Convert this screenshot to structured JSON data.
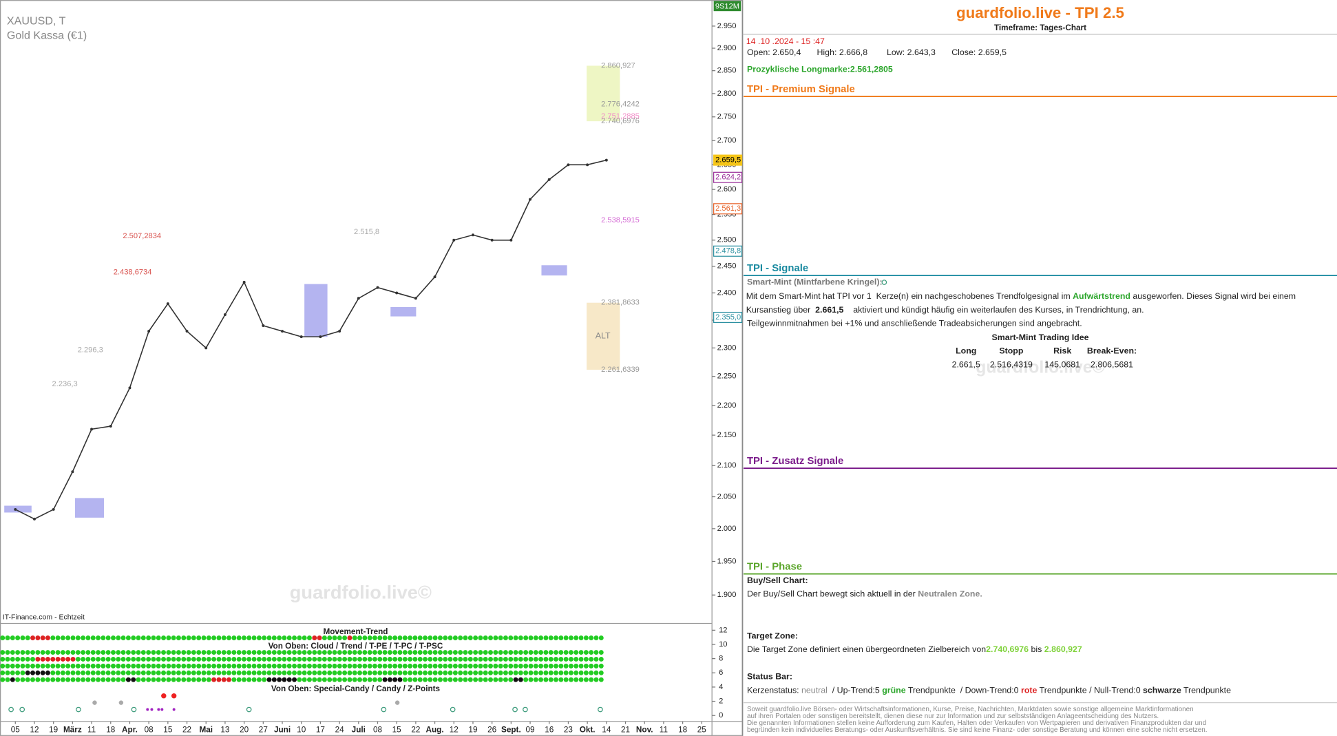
{
  "chart_data": {
    "type": "line",
    "title": "XAUUSD, T",
    "subtitle": "Gold Kassa (€1)",
    "badge": "9S12M",
    "watermark": "guardfolio.live©",
    "source": "IT-Finance.com - Echtzeit",
    "categories": [
      "05",
      "12",
      "19",
      "März",
      "11",
      "18",
      "Apr.",
      "08",
      "15",
      "22",
      "Mai",
      "13",
      "20",
      "27",
      "Juni",
      "10",
      "17",
      "24",
      "Juli",
      "08",
      "15",
      "22",
      "Aug.",
      "12",
      "19",
      "26",
      "Sept.",
      "09",
      "16",
      "23",
      "Okt.",
      "14",
      "21",
      "Nov.",
      "11",
      "18",
      "25"
    ],
    "series": [
      {
        "color": "#333333",
        "values": [
          2030,
          2015,
          2030,
          2090,
          2160,
          2165,
          2230,
          2330,
          2380,
          2330,
          2300,
          2360,
          2420,
          2340,
          2330,
          2320,
          2320,
          2330,
          2390,
          2410,
          2400,
          2390,
          2430,
          2500,
          2510,
          2500,
          2500,
          2580,
          2620,
          2650,
          2650,
          2659.5,
          null,
          null,
          null,
          null,
          null
        ]
      }
    ],
    "log_scale": true,
    "ylim": [
      1860,
      3010
    ],
    "yticks": [
      {
        "value": 1900,
        "label": "1.900"
      },
      {
        "value": 1950,
        "label": "1.950"
      },
      {
        "value": 2000,
        "label": "2.000"
      },
      {
        "value": 2050,
        "label": "2.050"
      },
      {
        "value": 2100,
        "label": "2.100"
      },
      {
        "value": 2150,
        "label": "2.150"
      },
      {
        "value": 2200,
        "label": "2.200"
      },
      {
        "value": 2250,
        "label": "2.250"
      },
      {
        "value": 2300,
        "label": "2.300"
      },
      {
        "value": 2350,
        "label": "2.350"
      },
      {
        "value": 2400,
        "label": "2.400"
      },
      {
        "value": 2450,
        "label": "2.450"
      },
      {
        "value": 2500,
        "label": "2.500"
      },
      {
        "value": 2550,
        "label": "2.550"
      },
      {
        "value": 2600,
        "label": "2.600"
      },
      {
        "value": 2650,
        "label": "2.650"
      },
      {
        "value": 2700,
        "label": "2.700"
      },
      {
        "value": 2750,
        "label": "2.750"
      },
      {
        "value": 2800,
        "label": "2.800"
      },
      {
        "value": 2850,
        "label": "2.850"
      },
      {
        "value": 2900,
        "label": "2.900"
      },
      {
        "value": 2950,
        "label": "2.950"
      }
    ],
    "price_tags": [
      {
        "value": 2659.5,
        "label": "2.659,5",
        "color": "#f5c518"
      },
      {
        "value": 2624.2,
        "label": "2.624,2",
        "color": "#9b2f9b"
      },
      {
        "value": 2561.3,
        "label": "2.561,3",
        "color": "#e8642a"
      },
      {
        "value": 2478.8,
        "label": "2.478,8",
        "color": "#2a8fa0"
      },
      {
        "value": 2355.0,
        "label": "2.355,0",
        "color": "#2a8fa0"
      }
    ],
    "zones": [
      {
        "low": {
          "value": 2740.6976,
          "label": "2.740,6976"
        },
        "high": {
          "value": 2860.927,
          "label": "2.860,927"
        },
        "color": "#eef6c4"
      },
      {
        "label": "ALT",
        "low": {
          "value": 2261.6339,
          "label": "2.261,6339"
        },
        "high": {
          "value": 2381.8633,
          "label": "2.381,8633"
        },
        "color": "#f7e8c8"
      }
    ],
    "annotations": [
      {
        "value": 2776.4242,
        "label": "2.776,4242",
        "color": "#999999"
      },
      {
        "value": 2751.2885,
        "label": "2.751,2885",
        "color": "#f28cc8"
      },
      {
        "value": 2538.5915,
        "label": "2.538,5915",
        "color": "#d46ad4"
      },
      {
        "value": 2507.2834,
        "label": "2.507,2834",
        "color": "#d9534f"
      },
      {
        "value": 2438.6734,
        "label": "2.438,6734",
        "color": "#d9534f"
      },
      {
        "value": 2515.8,
        "label": "2.515,8",
        "color": "#aaaaaa"
      },
      {
        "value": 2296.3,
        "label": "2.296,3",
        "color": "#aaaaaa"
      },
      {
        "value": 2236.3,
        "label": "2.236,3",
        "color": "#aaaaaa"
      }
    ]
  },
  "indicator": {
    "titles": [
      "Movement-Trend",
      "Von Oben: Cloud / Trend / T-PE / T-PC / T-PSC",
      "Von Oben: Special-Candy / Candy / Z-Points"
    ],
    "ylim": [
      0,
      12
    ],
    "yticks": [
      12,
      10,
      8,
      6,
      4,
      2,
      0
    ]
  },
  "panel": {
    "title": "guardfolio.live - TPI 2.5",
    "timeframe": "Timeframe: Tages-Chart",
    "timestamp": "14 .10 .2024 - 15 :47",
    "ohlc": [
      "Open: 2.650,4",
      "High: 2.666,8",
      "Low: 2.643,3",
      "Close: 2.659,5"
    ],
    "longmark": [
      "Prozyklische Longmarke:",
      "2.561,2805"
    ],
    "sections": [
      "TPI - Premium Signale",
      "TPI - Signale",
      "TPI - Zusatz Signale",
      "TPI - Phase"
    ],
    "smart_mint": {
      "heading": "Smart-Mint (Mintfarbene Kringel):",
      "lines": [
        [
          "Mit dem Smart-Mint hat TPI vor 1  Kerze(n) ein nachgeschobenes Trendfolgesignal im ",
          "Aufwärtstrend",
          " ausgeworfen. Dieses Signal wird bei einem"
        ],
        [
          "Kursanstieg über  ",
          "2.661,5",
          "    aktiviert und kündigt häufig ein weiterlaufen des Kurses, in Trendrichtung, an."
        ],
        [
          "Teilgewinnmitnahmen bei +1% und anschließende Tradeabsicherungen sind angebracht."
        ]
      ],
      "idea_title": "Smart-Mint Trading Idee",
      "headers": [
        "Long",
        "Stopp",
        "Risk",
        "Break-Even:"
      ],
      "values": [
        "2.661,5",
        "2.516,4319",
        "145,0681",
        "2.806,5681"
      ]
    },
    "phase": {
      "buy_sell_heading": "Buy/Sell Chart:",
      "buy_sell_text": [
        "Der Buy/Sell Chart bewegt sich aktuell in der ",
        "Neutralen Zone."
      ],
      "target_heading": "Target Zone:",
      "target_text": [
        "Die Target Zone definiert einen übergeordneten Zielbereich von",
        "2.740,6976",
        " bis ",
        "2.860,927"
      ],
      "status_heading": "Status Bar:",
      "status_text": [
        "Kerzenstatus: ",
        "neutral",
        "  / Up-Trend:5 ",
        "grüne",
        " Trendpunkte  / Down-Trend:0 ",
        "rote",
        " Trendpunkte / Null-Trend:0 ",
        "schwarze",
        " Trendpunkte"
      ]
    },
    "disclaimer": [
      "Soweit guardfolio.live Börsen- oder Wirtschaftsinformationen, Kurse, Preise, Nachrichten, Marktdaten sowie sonstige allgemeine Marktinformationen",
      "auf ihren Portalen oder sonstigen bereitstellt, dienen diese nur zur Information und zur selbstständigen Anlageentscheidung des Nutzers.",
      "Die genannten Informationen stellen keine Aufforderung zum Kaufen, Halten oder Verkaufen von Wertpapieren und derivativen Finanzprodukten dar und",
      "begründen kein individuelles Beratungs- oder Auskunftsverhältnis. Sie sind keine Finanz- oder sonstige Beratung und können eine solche nicht ersetzen."
    ]
  }
}
